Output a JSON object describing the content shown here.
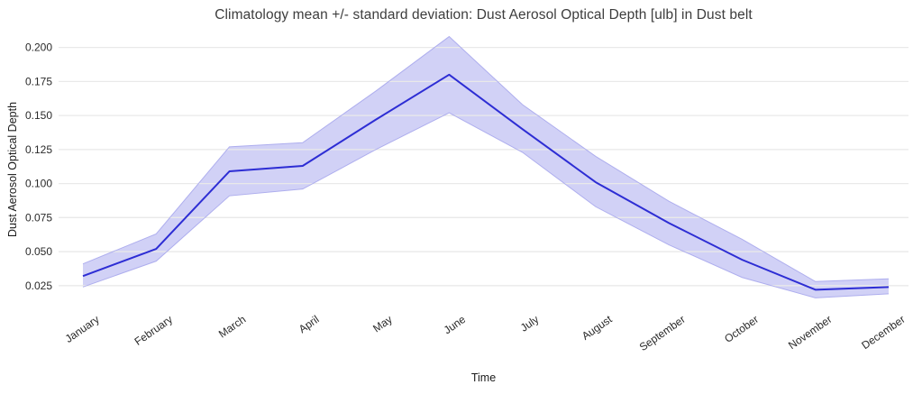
{
  "chart_data": {
    "type": "line",
    "title": "Climatology mean +/- standard deviation: Dust Aerosol Optical Depth [ulb] in Dust belt",
    "xlabel": "Time",
    "ylabel": "Dust Aerosol Optical Depth",
    "categories": [
      "January",
      "February",
      "March",
      "April",
      "May",
      "June",
      "July",
      "August",
      "September",
      "October",
      "November",
      "December"
    ],
    "series": [
      {
        "name": "mean",
        "values": [
          0.032,
          0.052,
          0.109,
          0.113,
          0.147,
          0.18,
          0.14,
          0.101,
          0.071,
          0.044,
          0.022,
          0.024
        ]
      },
      {
        "name": "mean + standard deviation",
        "values": [
          0.041,
          0.063,
          0.127,
          0.13,
          0.168,
          0.208,
          0.158,
          0.12,
          0.087,
          0.059,
          0.028,
          0.03
        ]
      },
      {
        "name": "mean - standard deviation",
        "values": [
          0.024,
          0.043,
          0.091,
          0.096,
          0.125,
          0.152,
          0.123,
          0.083,
          0.055,
          0.031,
          0.016,
          0.019
        ]
      }
    ],
    "yticks": [
      0.025,
      0.05,
      0.075,
      0.1,
      0.125,
      0.15,
      0.175,
      0.2
    ],
    "ytick_labels": [
      "0.025",
      "0.050",
      "0.075",
      "0.100",
      "0.125",
      "0.150",
      "0.175",
      "0.200"
    ],
    "ylim": [
      0.005,
      0.215
    ],
    "grid": true,
    "legend": false,
    "colors": {
      "line": "#2d2dd4",
      "band_fill": "#c9c9f4",
      "band_edge": "#aeaeee",
      "grid": "#e9e9e9",
      "title_text": "#3d3d3d",
      "tick_text": "#2a2a2a",
      "background": "#ffffff"
    }
  }
}
